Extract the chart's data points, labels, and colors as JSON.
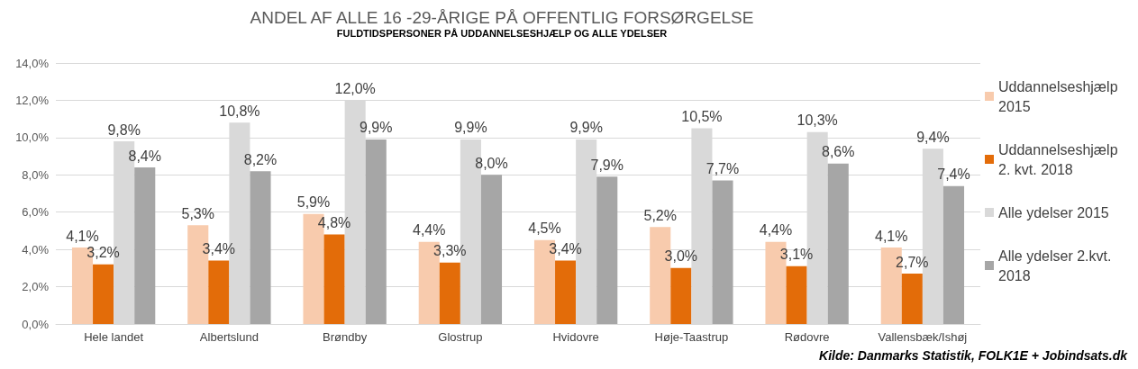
{
  "chart_data": {
    "type": "bar",
    "title": "ANDEL AF ALLE 16 -29-ÅRIGE PÅ OFFENTLIG FORSØRGELSE",
    "subtitle": "FULDTIDSPERSONER PÅ UDDANNELSESHJÆLP OG ALLE YDELSER",
    "categories": [
      "Hele landet",
      "Albertslund",
      "Brøndby",
      "Glostrup",
      "Hvidovre",
      "Høje-Taastrup",
      "Rødovre",
      "Vallensbæk/Ishøj"
    ],
    "series": [
      {
        "name": "Uddannelseshjælp 2015",
        "color": "#f8cbad",
        "values": [
          4.1,
          5.3,
          5.9,
          4.4,
          4.5,
          5.2,
          4.4,
          4.1
        ],
        "value_labels": [
          "4,1%",
          "5,3%",
          "5,9%",
          "4,4%",
          "4,5%",
          "5,2%",
          "4,4%",
          "4,1%"
        ]
      },
      {
        "name": "Uddannelseshjælp 2. kvt. 2018",
        "color": "#e36c09",
        "values": [
          3.2,
          3.4,
          4.8,
          3.3,
          3.4,
          3.0,
          3.1,
          2.7
        ],
        "value_labels": [
          "3,2%",
          "3,4%",
          "4,8%",
          "3,3%",
          "3,4%",
          "3,0%",
          "3,1%",
          "2,7%"
        ]
      },
      {
        "name": "Alle ydelser 2015",
        "color": "#d9d9d9",
        "values": [
          9.8,
          10.8,
          12.0,
          9.9,
          9.9,
          10.5,
          10.3,
          9.4
        ],
        "value_labels": [
          "9,8%",
          "10,8%",
          "12,0%",
          "9,9%",
          "9,9%",
          "10,5%",
          "10,3%",
          "9,4%"
        ]
      },
      {
        "name": "Alle ydelser 2.kvt. 2018",
        "color": "#a6a6a6",
        "values": [
          8.4,
          8.2,
          9.9,
          8.0,
          7.9,
          7.7,
          8.6,
          7.4
        ],
        "value_labels": [
          "8,4%",
          "8,2%",
          "9,9%",
          "8,0%",
          "7,9%",
          "7,7%",
          "8,6%",
          "7,4%"
        ]
      }
    ],
    "ylim": [
      0,
      14
    ],
    "yticks": [
      {
        "value": 0,
        "label": "0,0%"
      },
      {
        "value": 2,
        "label": "2,0%"
      },
      {
        "value": 4,
        "label": "4,0%"
      },
      {
        "value": 6,
        "label": "6,0%"
      },
      {
        "value": 8,
        "label": "8,0%"
      },
      {
        "value": 10,
        "label": "10,0%"
      },
      {
        "value": 12,
        "label": "12,0%"
      },
      {
        "value": 14,
        "label": "14,0%"
      }
    ],
    "grid": "y",
    "legend": "right",
    "annotations": [
      "Kilde: Danmarks Statistik, FOLK1E + Jobindsats.dk"
    ]
  }
}
